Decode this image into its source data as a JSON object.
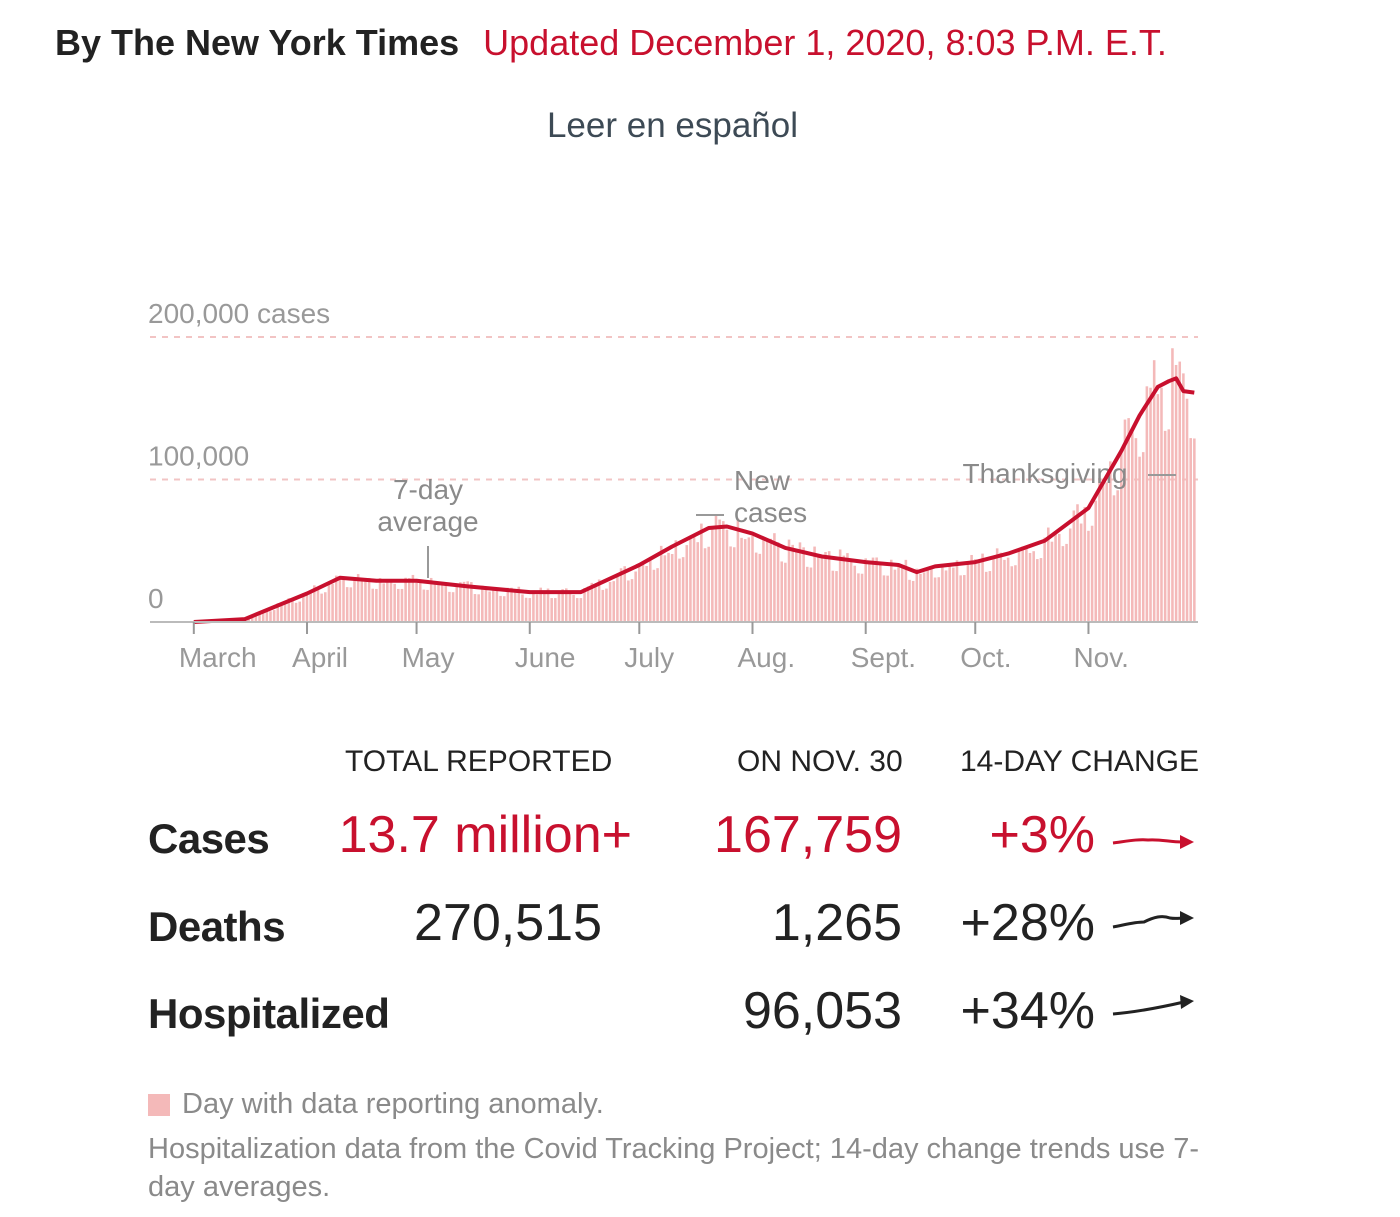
{
  "header": {
    "byline": "By The New York Times",
    "updated": "Updated December 1, 2020, 8:03 P.M. E.T.",
    "spanish_link": "Leer en español"
  },
  "colors": {
    "accent": "#c8102e",
    "bars": "#f4b9b9",
    "text": "#222222",
    "muted": "#999999"
  },
  "chart_data": {
    "type": "bar",
    "title": "",
    "xlabel": "",
    "ylabel": "",
    "ylim": [
      0,
      200000
    ],
    "y_ticks": [
      {
        "value": 200000,
        "label": "200,000 cases"
      },
      {
        "value": 100000,
        "label": "100,000"
      },
      {
        "value": 0,
        "label": "0"
      }
    ],
    "x_ticks": [
      "March",
      "April",
      "May",
      "June",
      "July",
      "Aug.",
      "Sept.",
      "Oct.",
      "Nov."
    ],
    "grid": "dashed horizontal",
    "annotations": {
      "avg_line1": "7-day",
      "avg_line2": "average",
      "new_line1": "New",
      "new_line2": "cases",
      "holiday": "Thanksgiving"
    },
    "series": [
      {
        "name": "7-day average",
        "x": [
          "2020-03-01",
          "2020-03-15",
          "2020-04-01",
          "2020-04-10",
          "2020-04-20",
          "2020-05-01",
          "2020-05-15",
          "2020-06-01",
          "2020-06-15",
          "2020-07-01",
          "2020-07-10",
          "2020-07-20",
          "2020-07-25",
          "2020-08-01",
          "2020-08-10",
          "2020-08-20",
          "2020-09-01",
          "2020-09-10",
          "2020-09-15",
          "2020-09-20",
          "2020-10-01",
          "2020-10-10",
          "2020-10-20",
          "2020-11-01",
          "2020-11-10",
          "2020-11-15",
          "2020-11-20",
          "2020-11-23",
          "2020-11-25",
          "2020-11-27",
          "2020-11-30"
        ],
        "y": [
          30,
          2000,
          20000,
          31000,
          29000,
          29000,
          25000,
          21000,
          21000,
          40000,
          53000,
          66000,
          67000,
          62000,
          52000,
          46000,
          42000,
          40000,
          35000,
          39000,
          42000,
          48000,
          57000,
          80000,
          120000,
          145000,
          165000,
          169000,
          171000,
          162000,
          161000
        ]
      }
    ]
  },
  "table": {
    "headers": [
      "TOTAL REPORTED",
      "ON NOV. 30",
      "14-DAY CHANGE"
    ],
    "rows": [
      {
        "label": "Cases",
        "total": "13.7 million+",
        "day": "167,759",
        "change": "+3%"
      },
      {
        "label": "Deaths",
        "total": "270,515",
        "day": "1,265",
        "change": "+28%"
      },
      {
        "label": "Hospitalized",
        "total": "",
        "day": "96,053",
        "change": "+34%"
      }
    ]
  },
  "footnotes": {
    "legend": "Day with data reporting anomaly.",
    "source": "Hospitalization data from the Covid Tracking Project; 14-day change trends use 7-day averages."
  }
}
